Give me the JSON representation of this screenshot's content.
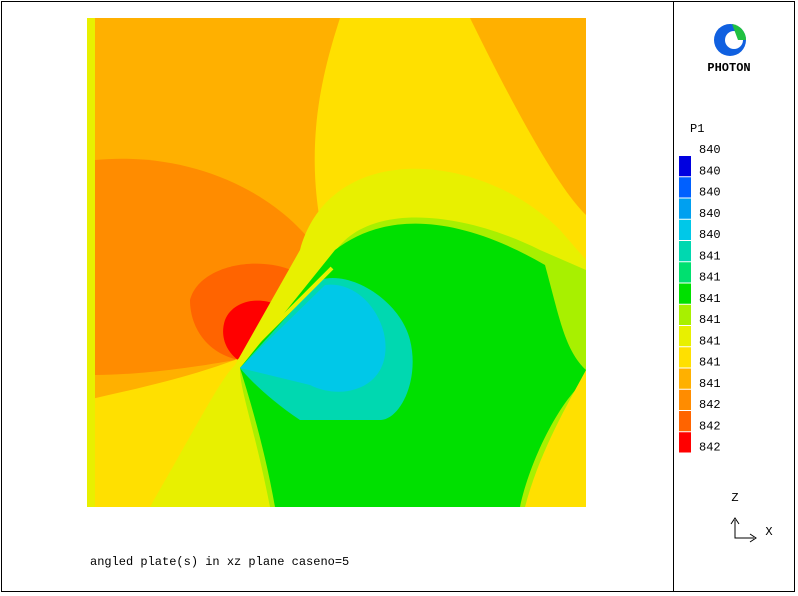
{
  "logo": {
    "text": "PHOTON"
  },
  "legend": {
    "title": "P1",
    "labels": [
      840,
      840,
      840,
      840,
      840,
      841,
      841,
      841,
      841,
      841,
      841,
      841,
      842,
      842,
      842
    ],
    "colors": [
      "#0000e0",
      "#0060ff",
      "#00a0f0",
      "#00c8e8",
      "#00d8b0",
      "#00e070",
      "#00e000",
      "#a8f000",
      "#e8f000",
      "#ffe000",
      "#ffb000",
      "#ff8c00",
      "#ff6400",
      "#ff0000"
    ]
  },
  "caption": "angled plate(s) in xz plane caseno=5",
  "axes": {
    "z": "Z",
    "x": "X"
  }
}
